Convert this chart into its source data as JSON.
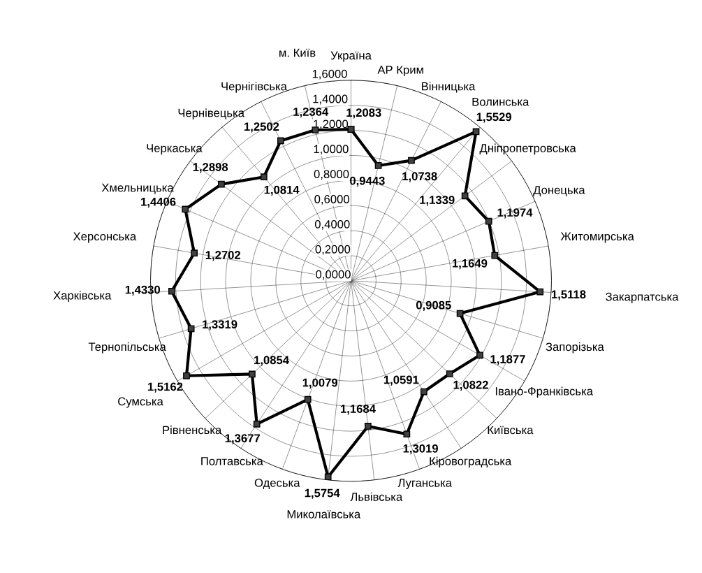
{
  "chart_data": {
    "type": "radar",
    "categories": [
      "Україна",
      "АР Крим",
      "Вінницька",
      "Волинська",
      "Дніпропетровська",
      "Донецька",
      "Житомирська",
      "Закарпатська",
      "Запорізька",
      "Івано-Франківська",
      "Київська",
      "Кіровоградська",
      "Луганська",
      "Львівська",
      "Миколаївська",
      "Одеська",
      "Полтавська",
      "Рівненська",
      "Сумська",
      "Тернопільська",
      "Харківська",
      "Херсонська",
      "Хмельницька",
      "Черкаська",
      "Чернівецька",
      "Чернігівська",
      "м. Київ"
    ],
    "series": [
      {
        "color": "#000000",
        "values": [
          1.2083,
          0.9443,
          1.0738,
          1.5529,
          1.1339,
          1.1974,
          1.1649,
          1.5118,
          0.9085,
          1.1877,
          1.0822,
          1.0591,
          1.3019,
          1.1684,
          1.5754,
          1.0079,
          1.3677,
          1.0854,
          1.5162,
          1.3319,
          1.433,
          1.2702,
          1.4406,
          1.2898,
          1.0814,
          1.2502,
          1.2364
        ],
        "value_labels": [
          "1,2083",
          "0,9443",
          "1,0738",
          "1,5529",
          "1,1339",
          "1,1974",
          "1,1649",
          "1,5118",
          "0,9085",
          "1,1877",
          "1,0822",
          "1,0591",
          "1,3019",
          "1,1684",
          "1,5754",
          "1,0079",
          "1,3677",
          "1,0854",
          "1,5162",
          "1,3319",
          "1,4330",
          "1,2702",
          "1,4406",
          "1,2898",
          "1,0814",
          "1,2502",
          "1,2364"
        ]
      }
    ],
    "ylim": [
      0,
      1.6
    ],
    "yticks": [
      {
        "value": 0,
        "label": "0,0000"
      },
      {
        "value": 0.2,
        "label": "0,2000"
      },
      {
        "value": 0.4,
        "label": "0,4000"
      },
      {
        "value": 0.6,
        "label": "0,6000"
      },
      {
        "value": 0.8,
        "label": "0,8000"
      },
      {
        "value": 1.0,
        "label": "1,0000"
      },
      {
        "value": 1.2,
        "label": "1,2000"
      },
      {
        "value": 1.4,
        "label": "1,4000"
      },
      {
        "value": 1.6,
        "label": "1,6000"
      }
    ],
    "grid": true,
    "marker": "square",
    "line_style": "solid"
  }
}
